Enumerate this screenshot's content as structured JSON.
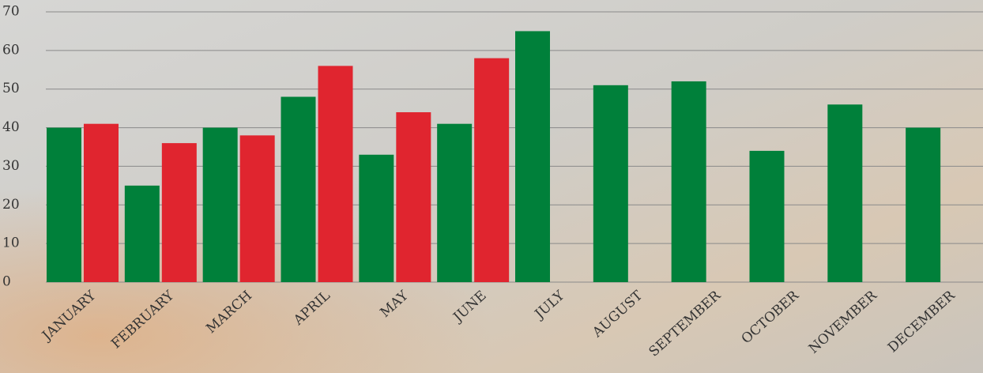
{
  "chart_data": {
    "type": "bar",
    "categories": [
      "JANUARY",
      "FEBRUARY",
      "MARCH",
      "APRIL",
      "MAY",
      "JUNE",
      "JULY",
      "AUGUST",
      "SEPTEMBER",
      "OCTOBER",
      "NOVEMBER",
      "DECEMBER"
    ],
    "series": [
      {
        "color": "#00803a",
        "values": [
          40,
          25,
          40,
          48,
          33,
          41,
          65,
          51,
          52,
          34,
          46,
          40
        ]
      },
      {
        "color": "#e0252f",
        "values": [
          41,
          36,
          38,
          56,
          44,
          58,
          null,
          null,
          null,
          null,
          null,
          null
        ]
      }
    ],
    "ylim": [
      0,
      70
    ],
    "yticks": [
      0,
      10,
      20,
      30,
      40,
      50,
      60,
      70
    ],
    "grid": true
  }
}
